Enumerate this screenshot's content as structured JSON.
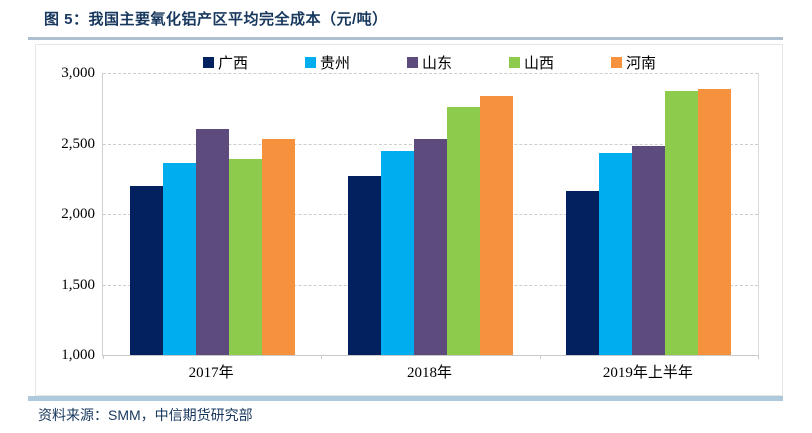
{
  "header": {
    "title": "图 5：我国主要氧化铝产区平均完全成本（元/吨）"
  },
  "footer": {
    "source": "资料来源：SMM，中信期货研究部"
  },
  "colors": {
    "title_text": "#17375D",
    "source_text": "#17375D",
    "title_rule": "#AEC0CF",
    "source_band": "#AFC9DC",
    "gridline": "#CDCDCD",
    "axis_line": "#C9C9C9"
  },
  "chart_data": {
    "type": "bar",
    "title": "我国主要氧化铝产区平均完全成本（元/吨）",
    "categories": [
      "2017年",
      "2018年",
      "2019年上半年"
    ],
    "series": [
      {
        "name": "广西",
        "color": "#03215F",
        "values": [
          2200,
          2270,
          2160
        ]
      },
      {
        "name": "贵州",
        "color": "#00AEEF",
        "values": [
          2360,
          2450,
          2430
        ]
      },
      {
        "name": "山东",
        "color": "#5D4B7E",
        "values": [
          2600,
          2530,
          2480
        ]
      },
      {
        "name": "山西",
        "color": "#8DCB4D",
        "values": [
          2390,
          2760,
          2870
        ]
      },
      {
        "name": "河南",
        "color": "#F6913E",
        "values": [
          2530,
          2840,
          2890
        ]
      }
    ],
    "xlabel": "",
    "ylabel": "",
    "ylim": [
      1000,
      3000
    ],
    "ytick_step": 500,
    "ytick_labels": [
      "3,000",
      "2,500",
      "2,000",
      "1,500",
      "1,000"
    ],
    "grid": "horizontal-dashed",
    "legend_position": "top-center"
  }
}
